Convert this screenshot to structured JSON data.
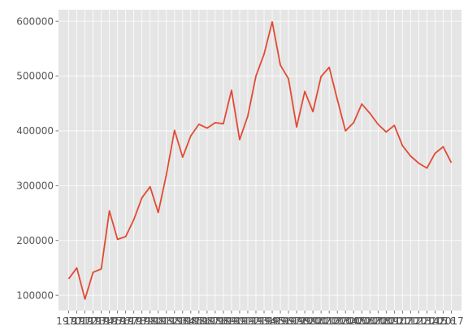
{
  "chart_data": {
    "type": "line",
    "title": "",
    "xlabel": "",
    "ylabel": "",
    "x": [
      1970,
      1971,
      1972,
      1973,
      1974,
      1975,
      1976,
      1977,
      1978,
      1979,
      1980,
      1981,
      1982,
      1983,
      1984,
      1985,
      1986,
      1987,
      1988,
      1989,
      1990,
      1991,
      1992,
      1993,
      1994,
      1995,
      1996,
      1997,
      1998,
      1999,
      2000,
      2001,
      2002,
      2003,
      2004,
      2005,
      2006,
      2007,
      2008,
      2009,
      2010,
      2011,
      2012,
      2013,
      2014,
      2015,
      2016,
      2017
    ],
    "x_tick_labels": [
      "1970",
      "1971",
      "1972",
      "1973",
      "1974",
      "1975",
      "1976",
      "1977",
      "1978",
      "1979",
      "1980",
      "1981",
      "1982",
      "1983",
      "1984",
      "1985",
      "1986",
      "1987",
      "1988",
      "1989",
      "1990",
      "1991",
      "1992",
      "1993",
      "1994",
      "1995",
      "1996",
      "1997",
      "1998",
      "1999",
      "2000",
      "2001",
      "2002",
      "2003",
      "2004",
      "2005",
      "2006",
      "2007",
      "2008",
      "2009",
      "2010",
      "2011",
      "2012",
      "2013",
      "2014",
      "2015",
      "2016",
      "2017"
    ],
    "series": [
      {
        "values": [
          130000,
          150000,
          93000,
          142000,
          148000,
          254000,
          202000,
          207000,
          238000,
          278000,
          298000,
          251000,
          320000,
          401000,
          352000,
          391000,
          412000,
          405000,
          415000,
          413000,
          474000,
          384000,
          427000,
          500000,
          540000,
          599000,
          520000,
          495000,
          407000,
          472000,
          435000,
          499000,
          516000,
          457000,
          400000,
          415000,
          449000,
          432000,
          412000,
          398000,
          410000,
          373000,
          354000,
          341000,
          332000,
          359000,
          371000,
          342000
        ],
        "color": "#E24A33"
      }
    ],
    "ylim": [
      72000,
      621000
    ],
    "y_ticks": [
      100000,
      200000,
      300000,
      400000,
      500000,
      600000
    ],
    "y_tick_labels": [
      "100000",
      "200000",
      "300000",
      "400000",
      "500000",
      "600000"
    ],
    "grid": true,
    "background": "#E5E5E5",
    "grid_color": "#FFFFFF",
    "tick_color": "#555555"
  }
}
